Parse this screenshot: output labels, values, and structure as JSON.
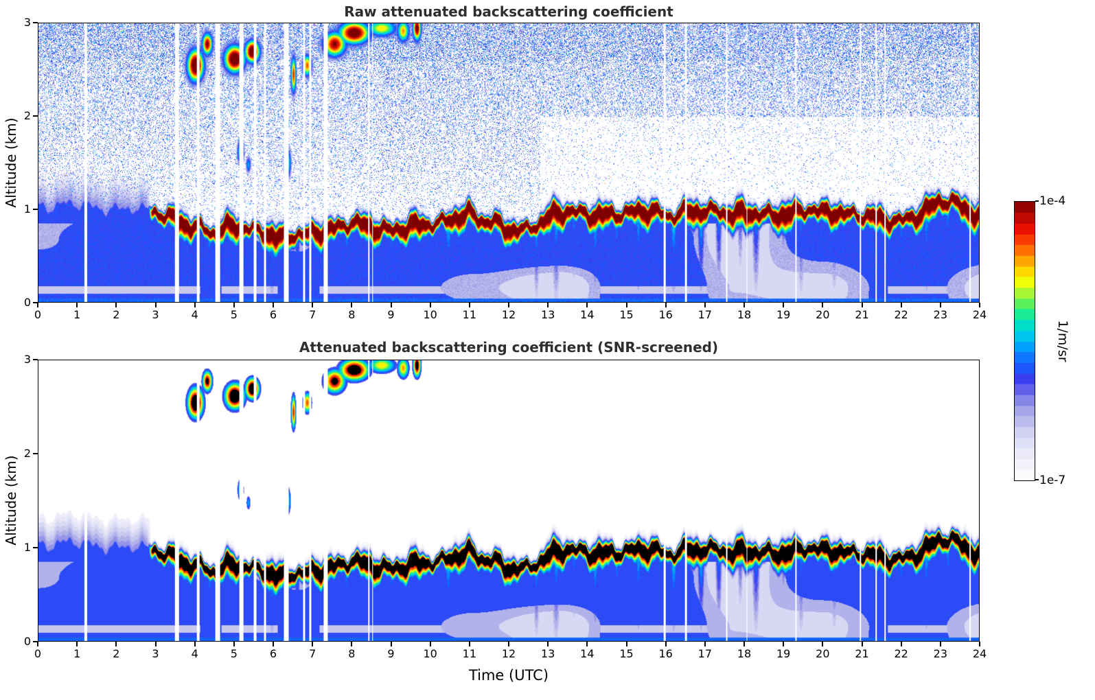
{
  "chart_data": {
    "type": "heatmap",
    "panels": [
      {
        "title": "Raw attenuated backscattering coefficient",
        "screened": false
      },
      {
        "title": "Attenuated backscattering coefficient (SNR-screened)",
        "screened": true
      }
    ],
    "x_axis": {
      "label": "Time (UTC)",
      "min": 0,
      "max": 24,
      "ticks": [
        0,
        1,
        2,
        3,
        4,
        5,
        6,
        7,
        8,
        9,
        10,
        11,
        12,
        13,
        14,
        15,
        16,
        17,
        18,
        19,
        20,
        21,
        22,
        23,
        24
      ]
    },
    "y_axis": {
      "label": "Altitude (km)",
      "min": 0,
      "max": 3,
      "ticks": [
        0,
        1,
        2,
        3
      ]
    },
    "colorbar": {
      "label": "1/m/sr",
      "max_label": "1e-4",
      "min_label": "1e-7",
      "levels": 26,
      "stops": [
        [
          0,
          "#ffffff"
        ],
        [
          0.06,
          "#f3f3fb"
        ],
        [
          0.12,
          "#e4e4f7"
        ],
        [
          0.18,
          "#cfcff1"
        ],
        [
          0.24,
          "#adade9"
        ],
        [
          0.3,
          "#7d7de9"
        ],
        [
          0.36,
          "#3c3cf0"
        ],
        [
          0.42,
          "#1560ff"
        ],
        [
          0.48,
          "#00a0ff"
        ],
        [
          0.53,
          "#00d0e8"
        ],
        [
          0.58,
          "#00e8b0"
        ],
        [
          0.63,
          "#50f060"
        ],
        [
          0.68,
          "#b4f82a"
        ],
        [
          0.72,
          "#ffff00"
        ],
        [
          0.78,
          "#ffb400"
        ],
        [
          0.84,
          "#ff5a00"
        ],
        [
          0.9,
          "#ee1000"
        ],
        [
          1,
          "#7f0000"
        ]
      ]
    },
    "layer_height_km": [
      1.02,
      1.04,
      1.05,
      1.0,
      0.98,
      1.0,
      0.97,
      0.9,
      0.82,
      0.76,
      0.85,
      0.8,
      0.72,
      0.73,
      0.78,
      0.8,
      0.88,
      0.82,
      0.8,
      0.86,
      0.85,
      0.92,
      0.97,
      0.88,
      0.82,
      0.78,
      0.95,
      1.0,
      0.96,
      0.95,
      0.97,
      1.02,
      0.95,
      1.0,
      1.02,
      0.96,
      1.0,
      0.96,
      0.95,
      1.0,
      1.0,
      0.96,
      0.94,
      0.9,
      0.9,
      0.96,
      1.1,
      1.08,
      0.95
    ],
    "gaps_utc": [
      [
        1.2,
        0.06
      ],
      [
        3.52,
        0.1
      ],
      [
        4.06,
        0.07
      ],
      [
        4.57,
        0.12
      ],
      [
        5.17,
        0.1
      ],
      [
        5.52,
        0.07
      ],
      [
        5.78,
        0.05
      ],
      [
        6.32,
        0.12
      ],
      [
        6.77,
        0.05
      ],
      [
        6.92,
        0.05
      ],
      [
        7.32,
        0.09
      ],
      [
        8.42,
        0.04
      ],
      [
        8.52,
        0.03
      ],
      [
        15.97,
        0.04
      ],
      [
        16.52,
        0.05
      ],
      [
        17.55,
        0.04
      ],
      [
        18.07,
        0.03
      ],
      [
        19.32,
        0.05
      ],
      [
        20.97,
        0.03
      ],
      [
        21.37,
        0.03
      ],
      [
        21.6,
        0.03
      ],
      [
        23.77,
        0.04
      ]
    ],
    "clouds": [
      [
        4.0,
        2.55,
        0.16,
        0.13,
        1.15
      ],
      [
        4.3,
        2.78,
        0.1,
        0.09,
        1.0
      ],
      [
        5.0,
        2.62,
        0.2,
        0.11,
        1.15
      ],
      [
        5.45,
        2.7,
        0.14,
        0.09,
        1.15
      ],
      [
        5.15,
        1.62,
        0.07,
        0.1,
        0.62
      ],
      [
        5.35,
        1.48,
        0.05,
        0.07,
        0.5
      ],
      [
        6.35,
        1.5,
        0.07,
        0.13,
        0.62
      ],
      [
        6.5,
        2.45,
        0.05,
        0.15,
        0.9
      ],
      [
        6.85,
        2.55,
        0.09,
        0.09,
        0.85
      ],
      [
        7.55,
        2.78,
        0.22,
        0.1,
        1.0
      ],
      [
        8.05,
        2.9,
        0.3,
        0.09,
        1.1
      ],
      [
        8.75,
        2.95,
        0.3,
        0.07,
        0.75
      ],
      [
        9.3,
        2.92,
        0.12,
        0.09,
        0.8
      ],
      [
        9.65,
        2.95,
        0.08,
        0.1,
        1.05
      ]
    ],
    "plumes": [
      [
        4.35,
        0.06,
        0.9,
        0.5
      ],
      [
        5.95,
        0.07,
        1.0,
        0.55
      ],
      [
        6.6,
        0.06,
        0.8,
        0.5
      ],
      [
        7.1,
        0.05,
        0.7,
        0.45
      ],
      [
        7.85,
        0.06,
        0.9,
        0.5
      ],
      [
        8.3,
        0.05,
        0.8,
        0.45
      ],
      [
        9.0,
        0.06,
        0.85,
        0.5
      ],
      [
        9.35,
        0.08,
        0.85,
        0.5
      ],
      [
        10.45,
        0.1,
        0.95,
        0.55
      ],
      [
        11.15,
        0.05,
        0.5,
        0.45
      ],
      [
        12.05,
        0.06,
        0.55,
        0.45
      ],
      [
        12.7,
        0.07,
        1.0,
        0.5
      ],
      [
        13.2,
        0.09,
        1.0,
        0.55
      ],
      [
        13.65,
        0.06,
        0.8,
        0.5
      ],
      [
        14.2,
        0.08,
        1.0,
        0.55
      ],
      [
        14.75,
        0.07,
        0.9,
        0.5
      ],
      [
        15.3,
        0.08,
        1.0,
        0.55
      ],
      [
        15.85,
        0.06,
        0.8,
        0.5
      ],
      [
        16.2,
        0.09,
        1.0,
        0.55
      ],
      [
        16.9,
        0.08,
        1.0,
        0.55
      ],
      [
        17.35,
        0.07,
        0.9,
        0.5
      ],
      [
        17.9,
        0.06,
        0.7,
        0.45
      ],
      [
        18.3,
        0.08,
        0.95,
        0.5
      ],
      [
        19.0,
        0.05,
        0.6,
        0.45
      ],
      [
        19.45,
        0.08,
        0.95,
        0.5
      ],
      [
        20.3,
        0.08,
        0.9,
        0.5
      ],
      [
        20.9,
        0.06,
        0.7,
        0.45
      ],
      [
        21.5,
        0.07,
        0.9,
        0.5
      ],
      [
        22.0,
        0.07,
        0.85,
        0.5
      ],
      [
        22.65,
        0.08,
        1.0,
        0.55
      ],
      [
        23.2,
        0.07,
        0.9,
        0.5
      ]
    ]
  }
}
